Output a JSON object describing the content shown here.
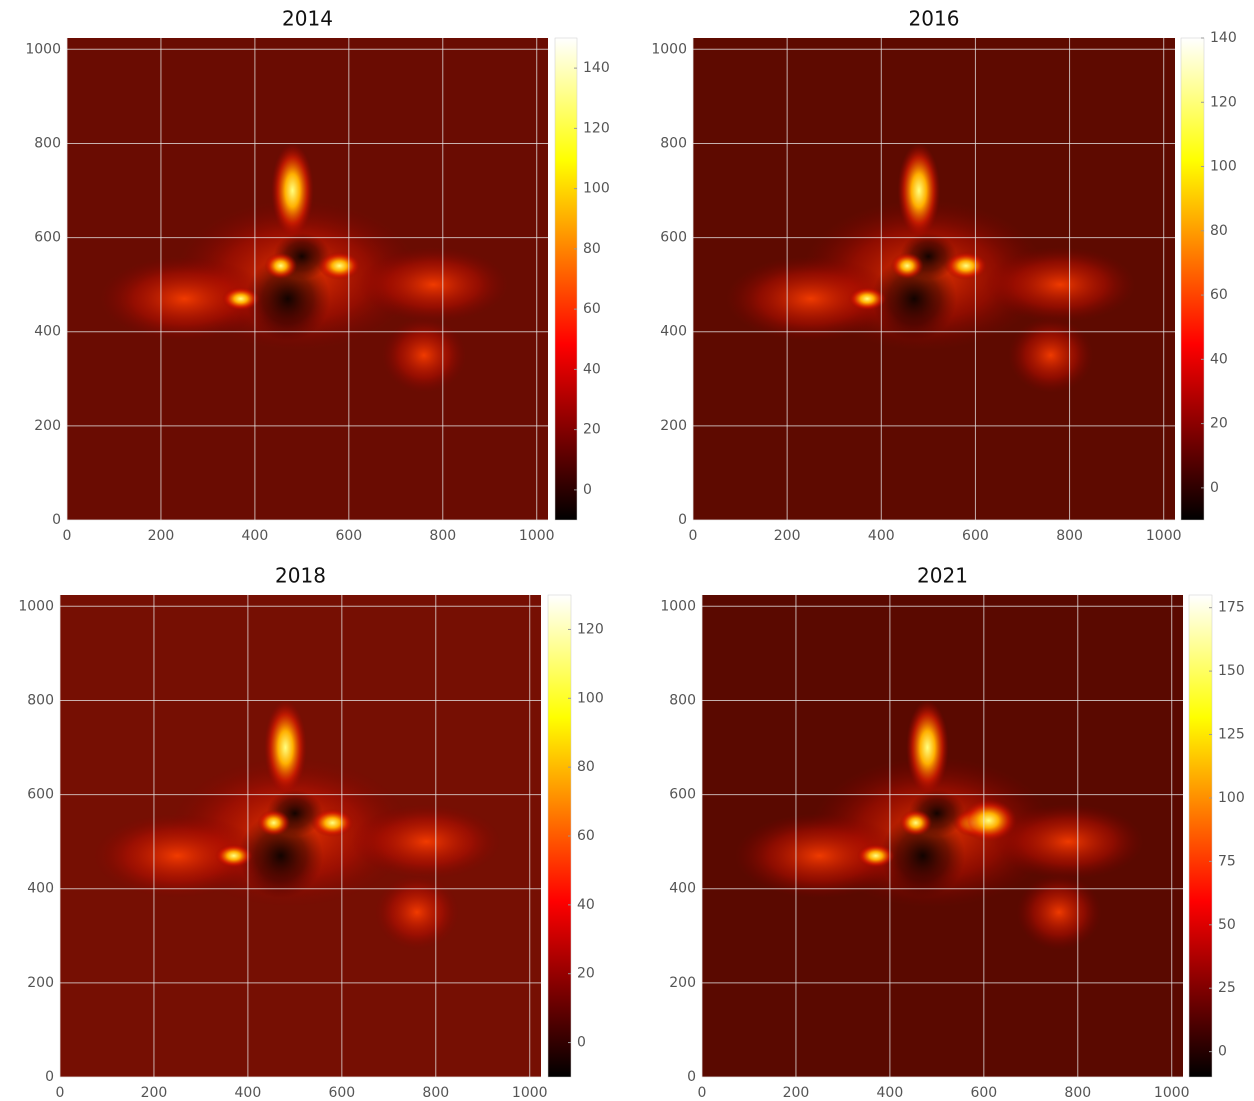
{
  "chart_data": [
    {
      "type": "image",
      "title": "2014",
      "xlim": [
        0,
        1024
      ],
      "ylim": [
        0,
        1024
      ],
      "xticks": [
        0,
        200,
        400,
        600,
        800,
        1000
      ],
      "yticks": [
        0,
        200,
        400,
        600,
        800,
        1000
      ],
      "grid": true,
      "colormap": "hot",
      "clim": [
        -10,
        150
      ],
      "cticks": [
        0,
        20,
        40,
        60,
        80,
        100,
        120,
        140
      ]
    },
    {
      "type": "image",
      "title": "2016",
      "xlim": [
        0,
        1024
      ],
      "ylim": [
        0,
        1024
      ],
      "xticks": [
        0,
        200,
        400,
        600,
        800,
        1000
      ],
      "yticks": [
        0,
        200,
        400,
        600,
        800,
        1000
      ],
      "grid": true,
      "colormap": "hot",
      "clim": [
        -10,
        140
      ],
      "cticks": [
        0,
        20,
        40,
        60,
        80,
        100,
        120,
        140
      ]
    },
    {
      "type": "image",
      "title": "2018",
      "xlim": [
        0,
        1024
      ],
      "ylim": [
        0,
        1024
      ],
      "xticks": [
        0,
        200,
        400,
        600,
        800,
        1000
      ],
      "yticks": [
        0,
        200,
        400,
        600,
        800,
        1000
      ],
      "grid": true,
      "colormap": "hot",
      "clim": [
        -10,
        130
      ],
      "cticks": [
        0,
        20,
        40,
        60,
        80,
        100,
        120
      ]
    },
    {
      "type": "image",
      "title": "2021",
      "xlim": [
        0,
        1024
      ],
      "ylim": [
        0,
        1024
      ],
      "xticks": [
        0,
        200,
        400,
        600,
        800,
        1000
      ],
      "yticks": [
        0,
        200,
        400,
        600,
        800,
        1000
      ],
      "grid": true,
      "colormap": "hot",
      "clim": [
        -10,
        180
      ],
      "cticks": [
        0,
        25,
        50,
        75,
        100,
        125,
        150,
        175
      ]
    }
  ]
}
